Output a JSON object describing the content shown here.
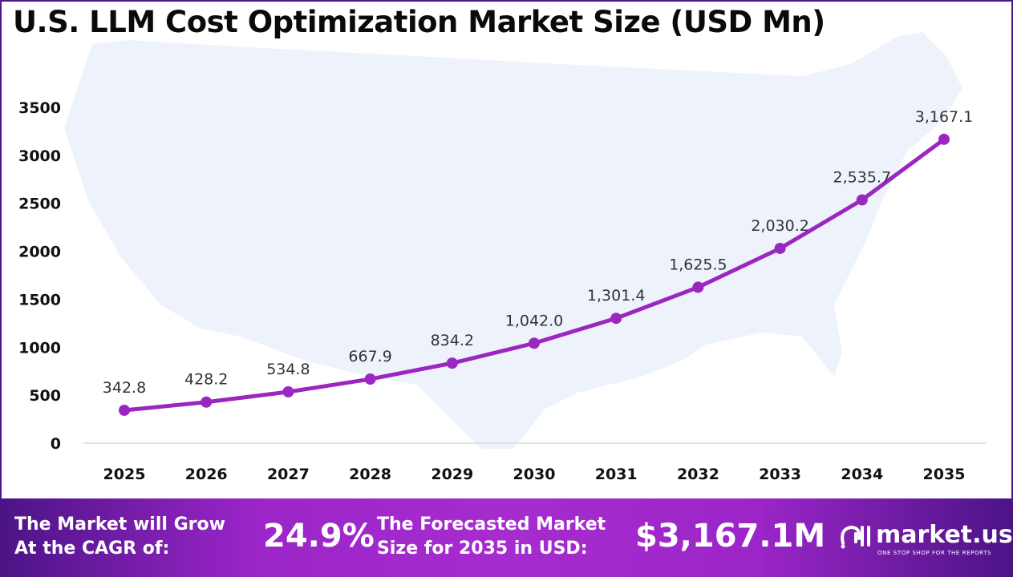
{
  "chart_data": {
    "type": "line",
    "title": "U.S. LLM Cost Optimization Market Size (USD Mn)",
    "categories": [
      "2025",
      "2026",
      "2027",
      "2028",
      "2029",
      "2030",
      "2031",
      "2032",
      "2033",
      "2034",
      "2035"
    ],
    "values": [
      342.8,
      428.2,
      534.8,
      667.9,
      834.2,
      1042.0,
      1301.4,
      1625.5,
      2030.2,
      2535.7,
      3167.1
    ],
    "data_labels": [
      "342.8",
      "428.2",
      "534.8",
      "667.9",
      "834.2",
      "1,042.0",
      "1,301.4",
      "1,625.5",
      "2,030.2",
      "2,535.7",
      "3,167.1"
    ],
    "yticks": [
      "0",
      "500",
      "1000",
      "1500",
      "2000",
      "2500",
      "3000",
      "3500"
    ],
    "ylim": [
      0,
      3500
    ],
    "grid": false,
    "line_color": "#9b27c0",
    "background": "faint U.S. map silhouette"
  },
  "footer": {
    "cagr_label_line1": "The Market will Grow",
    "cagr_label_line2": "At the CAGR of:",
    "cagr_value": "24.9%",
    "forecast_label_line1": "The Forecasted Market",
    "forecast_label_line2": "Size for 2035 in USD:",
    "forecast_value": "$3,167.1M",
    "brand_name": "market.us",
    "brand_tagline": "ONE STOP SHOP FOR THE REPORTS"
  }
}
